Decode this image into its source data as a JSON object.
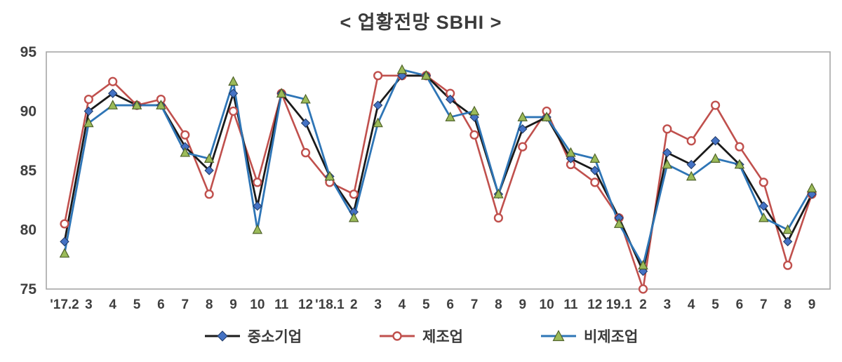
{
  "title": "<  업황전망  SBHI  >",
  "colors": {
    "sme_line": "#1a1a1a",
    "sme_marker": "#4472c4",
    "sme_marker_edge": "#1f3864",
    "mfg_line": "#c0504d",
    "mfg_marker_fill": "#ffffff",
    "nonmfg_line": "#2e75b6",
    "nonmfg_marker": "#9bbb59",
    "nonmfg_marker_edge": "#4f6228",
    "axis_text": "#3f3f3f",
    "plot_border": "#a6a6a6"
  },
  "legend": [
    {
      "label": "중소기업",
      "marker": "diamond"
    },
    {
      "label": "제조업",
      "marker": "open-circle"
    },
    {
      "label": "비제조업",
      "marker": "triangle"
    }
  ],
  "chart_data": {
    "type": "line",
    "title": "< 업황전망 SBHI >",
    "xlabel": "",
    "ylabel": "",
    "ylim": [
      75,
      95
    ],
    "y_ticks": [
      75,
      80,
      85,
      90,
      95
    ],
    "grid": false,
    "legend_position": "bottom",
    "categories": [
      "'17.2",
      "3",
      "4",
      "5",
      "6",
      "7",
      "8",
      "9",
      "10",
      "11",
      "12",
      "'18.1",
      "2",
      "3",
      "4",
      "5",
      "6",
      "7",
      "8",
      "9",
      "10",
      "11",
      "12",
      "19.1",
      "2",
      "3",
      "4",
      "5",
      "6",
      "7",
      "8",
      "9"
    ],
    "series": [
      {
        "name": "중소기업",
        "values": [
          79.0,
          90.0,
          91.5,
          90.5,
          90.5,
          87.0,
          85.0,
          91.5,
          82.0,
          91.5,
          89.0,
          84.5,
          81.5,
          90.5,
          93.0,
          93.0,
          91.0,
          89.5,
          83.0,
          88.5,
          89.5,
          86.0,
          85.0,
          81.0,
          76.5,
          86.5,
          85.5,
          87.5,
          85.5,
          82.0,
          79.0,
          83.0
        ]
      },
      {
        "name": "제조업",
        "values": [
          80.5,
          91.0,
          92.5,
          90.5,
          91.0,
          88.0,
          83.0,
          90.0,
          84.0,
          91.5,
          86.5,
          84.0,
          83.0,
          93.0,
          93.0,
          93.0,
          91.5,
          88.0,
          81.0,
          87.0,
          90.0,
          85.5,
          84.0,
          81.0,
          75.0,
          88.5,
          87.5,
          90.5,
          87.0,
          84.0,
          77.0,
          83.0
        ]
      },
      {
        "name": "비제조업",
        "values": [
          78.0,
          89.0,
          90.5,
          90.5,
          90.5,
          86.5,
          86.0,
          92.5,
          80.0,
          91.5,
          91.0,
          84.5,
          81.0,
          89.0,
          93.5,
          93.0,
          89.5,
          90.0,
          83.0,
          89.5,
          89.5,
          86.5,
          86.0,
          80.5,
          77.0,
          85.5,
          84.5,
          86.0,
          85.5,
          81.0,
          80.0,
          83.5
        ]
      }
    ]
  }
}
